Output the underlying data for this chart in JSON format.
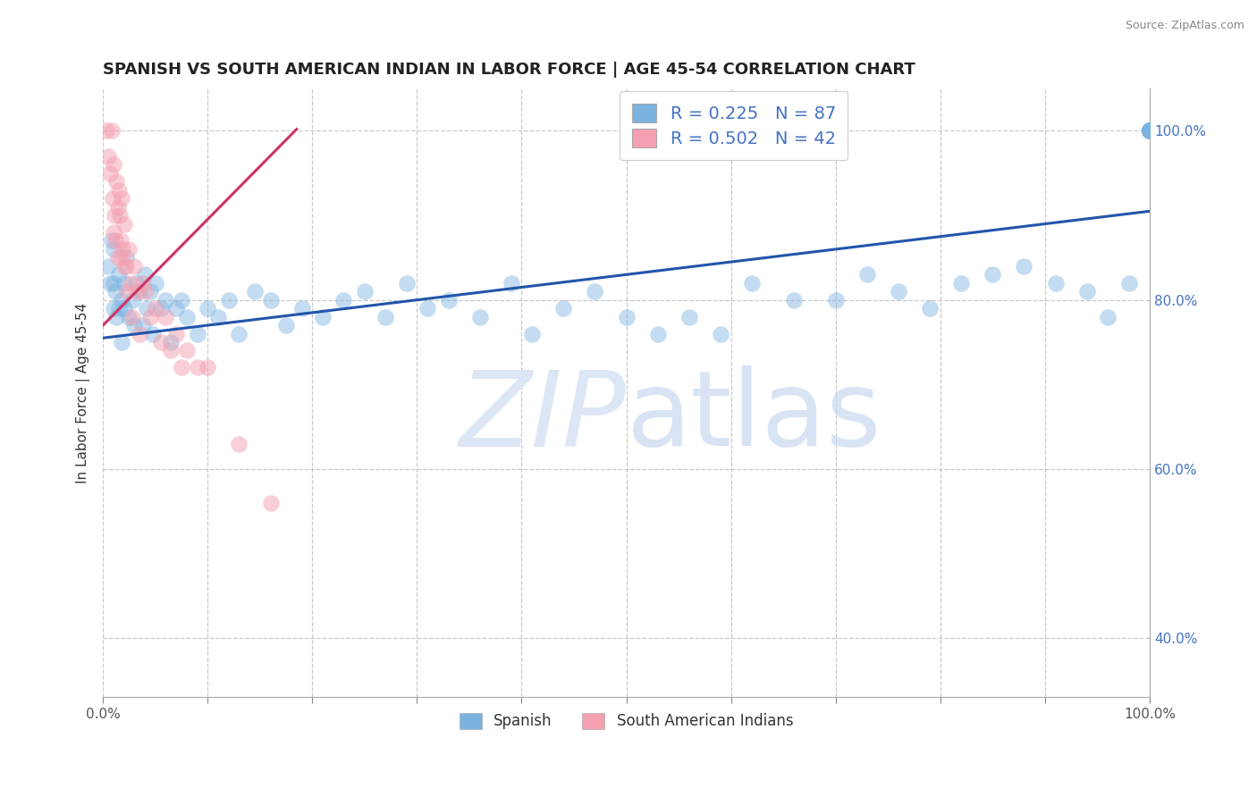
{
  "title": "SPANISH VS SOUTH AMERICAN INDIAN IN LABOR FORCE | AGE 45-54 CORRELATION CHART",
  "source_text": "Source: ZipAtlas.com",
  "ylabel": "In Labor Force | Age 45-54",
  "xlim": [
    0.0,
    1.0
  ],
  "ylim": [
    0.33,
    1.05
  ],
  "x_ticks": [
    0.0,
    0.1,
    0.2,
    0.3,
    0.4,
    0.5,
    0.6,
    0.7,
    0.8,
    0.9,
    1.0
  ],
  "y_ticks": [
    0.4,
    0.6,
    0.8,
    1.0
  ],
  "y_tick_labels": [
    "40.0%",
    "60.0%",
    "80.0%",
    "100.0%"
  ],
  "legend_r1": "R = 0.225",
  "legend_n1": "N = 87",
  "legend_r2": "R = 0.502",
  "legend_n2": "N = 42",
  "legend_label1": "Spanish",
  "legend_label2": "South American Indians",
  "blue_color": "#7ab3e0",
  "pink_color": "#f4a0b0",
  "blue_line_color": "#2255aa",
  "pink_line_color": "#cc3366",
  "tick_color": "#4472c4",
  "watermark_zip": "ZIP",
  "watermark_atlas": "atlas",
  "watermark_color": "#dce6f5",
  "title_fontsize": 13,
  "axis_label_fontsize": 11,
  "tick_fontsize": 11,
  "blue_trendline_x": [
    0.0,
    1.0
  ],
  "blue_trendline_y": [
    0.755,
    0.905
  ],
  "pink_trendline_x": [
    0.0,
    0.185
  ],
  "pink_trendline_y": [
    0.77,
    1.002
  ],
  "blue_scatter_x": [
    0.005,
    0.007,
    0.008,
    0.01,
    0.01,
    0.01,
    0.012,
    0.013,
    0.015,
    0.015,
    0.018,
    0.018,
    0.02,
    0.02,
    0.022,
    0.025,
    0.028,
    0.03,
    0.032,
    0.035,
    0.038,
    0.04,
    0.042,
    0.045,
    0.048,
    0.05,
    0.055,
    0.06,
    0.065,
    0.07,
    0.075,
    0.08,
    0.09,
    0.1,
    0.11,
    0.12,
    0.13,
    0.145,
    0.16,
    0.175,
    0.19,
    0.21,
    0.23,
    0.25,
    0.27,
    0.29,
    0.31,
    0.33,
    0.36,
    0.39,
    0.41,
    0.44,
    0.47,
    0.5,
    0.53,
    0.56,
    0.59,
    0.62,
    0.66,
    0.7,
    0.73,
    0.76,
    0.79,
    0.82,
    0.85,
    0.88,
    0.91,
    0.94,
    0.96,
    0.98,
    1.0,
    1.0,
    1.0,
    1.0,
    1.0,
    1.0,
    1.0,
    1.0,
    1.0,
    1.0,
    1.0,
    1.0,
    1.0,
    1.0,
    1.0,
    1.0,
    1.0
  ],
  "blue_scatter_y": [
    0.84,
    0.82,
    0.87,
    0.79,
    0.86,
    0.82,
    0.81,
    0.78,
    0.79,
    0.83,
    0.8,
    0.75,
    0.82,
    0.79,
    0.85,
    0.78,
    0.8,
    0.77,
    0.82,
    0.81,
    0.77,
    0.83,
    0.79,
    0.81,
    0.76,
    0.82,
    0.79,
    0.8,
    0.75,
    0.79,
    0.8,
    0.78,
    0.76,
    0.79,
    0.78,
    0.8,
    0.76,
    0.81,
    0.8,
    0.77,
    0.79,
    0.78,
    0.8,
    0.81,
    0.78,
    0.82,
    0.79,
    0.8,
    0.78,
    0.82,
    0.76,
    0.79,
    0.81,
    0.78,
    0.76,
    0.78,
    0.76,
    0.82,
    0.8,
    0.8,
    0.83,
    0.81,
    0.79,
    0.82,
    0.83,
    0.84,
    0.82,
    0.81,
    0.78,
    0.82,
    1.0,
    1.0,
    1.0,
    1.0,
    1.0,
    1.0,
    1.0,
    1.0,
    1.0,
    1.0,
    1.0,
    1.0,
    1.0,
    1.0,
    1.0,
    1.0,
    1.0
  ],
  "pink_scatter_x": [
    0.003,
    0.005,
    0.007,
    0.008,
    0.009,
    0.01,
    0.01,
    0.011,
    0.012,
    0.013,
    0.014,
    0.014,
    0.015,
    0.016,
    0.017,
    0.018,
    0.018,
    0.019,
    0.02,
    0.02,
    0.022,
    0.023,
    0.025,
    0.027,
    0.028,
    0.03,
    0.032,
    0.035,
    0.038,
    0.04,
    0.045,
    0.05,
    0.055,
    0.06,
    0.065,
    0.07,
    0.075,
    0.08,
    0.09,
    0.1,
    0.13,
    0.16
  ],
  "pink_scatter_y": [
    1.0,
    0.97,
    0.95,
    1.0,
    0.92,
    0.88,
    0.96,
    0.9,
    0.87,
    0.94,
    0.91,
    0.85,
    0.93,
    0.9,
    0.87,
    0.85,
    0.92,
    0.86,
    0.84,
    0.89,
    0.84,
    0.81,
    0.86,
    0.82,
    0.78,
    0.84,
    0.81,
    0.76,
    0.82,
    0.81,
    0.78,
    0.79,
    0.75,
    0.78,
    0.74,
    0.76,
    0.72,
    0.74,
    0.72,
    0.72,
    0.63,
    0.56
  ]
}
